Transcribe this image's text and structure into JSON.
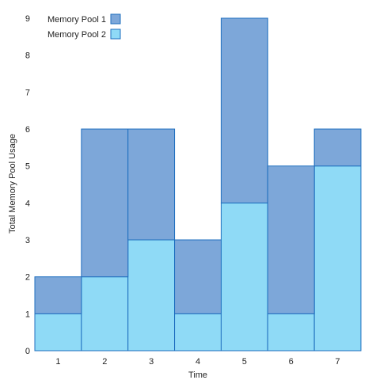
{
  "chart_data": {
    "type": "bar",
    "stacked": true,
    "categories": [
      "1",
      "2",
      "3",
      "4",
      "5",
      "6",
      "7"
    ],
    "series": [
      {
        "name": "Memory Pool 2",
        "values": [
          1,
          2,
          3,
          1,
          4,
          1,
          5
        ],
        "color": "#8fdaf6"
      },
      {
        "name": "Memory Pool 1",
        "values": [
          1,
          4,
          3,
          2,
          5,
          4,
          1
        ],
        "color": "#7da7d9"
      }
    ],
    "legend": [
      "Memory Pool 1",
      "Memory Pool 2"
    ],
    "xlabel": "Time",
    "ylabel": "Total Memory Pool Usage",
    "ylim": [
      0,
      9
    ],
    "yticks": [
      "0",
      "1",
      "2",
      "3",
      "4",
      "5",
      "6",
      "7",
      "8",
      "9"
    ],
    "legend_position": "top-left",
    "grid": false,
    "edge_color": "#1f6fbf"
  }
}
